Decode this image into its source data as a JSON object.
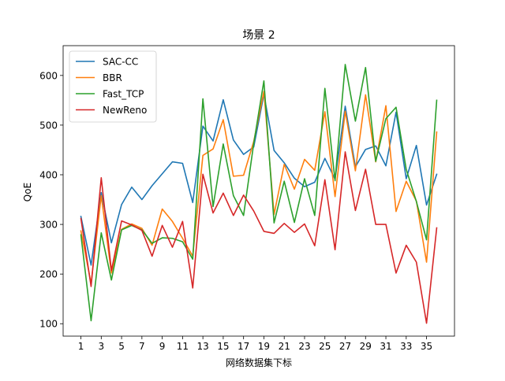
{
  "chart_data": {
    "type": "line",
    "title": "场景 2",
    "xlabel": "网络数据集下标",
    "ylabel": "QoE",
    "xlim": [
      -0.75,
      37.75
    ],
    "ylim": [
      75,
      660
    ],
    "xticks": [
      1,
      3,
      5,
      7,
      9,
      11,
      13,
      15,
      17,
      19,
      21,
      23,
      25,
      27,
      29,
      31,
      33,
      35
    ],
    "yticks": [
      100,
      200,
      300,
      400,
      500,
      600
    ],
    "grid": false,
    "legend_position": "top-left",
    "x": [
      1,
      2,
      3,
      4,
      5,
      6,
      7,
      8,
      9,
      10,
      11,
      12,
      13,
      14,
      15,
      16,
      17,
      18,
      19,
      20,
      21,
      22,
      23,
      24,
      25,
      26,
      27,
      28,
      29,
      30,
      31,
      32,
      33,
      34,
      35,
      36
    ],
    "series": [
      {
        "name": "SAC-CC",
        "color": "#1f77b4",
        "values": [
          316,
          218,
          364,
          263,
          340,
          375,
          350,
          378,
          402,
          426,
          423,
          344,
          498,
          468,
          551,
          470,
          441,
          456,
          562,
          449,
          424,
          393,
          376,
          385,
          433,
          391,
          538,
          416,
          451,
          458,
          418,
          526,
          392,
          459,
          339,
          401
        ]
      },
      {
        "name": "BBR",
        "color": "#ff7f0e",
        "values": [
          287,
          181,
          358,
          202,
          290,
          301,
          292,
          258,
          331,
          306,
          272,
          236,
          439,
          452,
          511,
          397,
          399,
          467,
          568,
          320,
          421,
          371,
          431,
          409,
          527,
          356,
          528,
          408,
          561,
          426,
          539,
          326,
          387,
          347,
          224,
          486
        ]
      },
      {
        "name": "Fast_TCP",
        "color": "#2ca02c",
        "values": [
          279,
          106,
          283,
          188,
          289,
          298,
          289,
          262,
          273,
          272,
          265,
          230,
          553,
          336,
          462,
          358,
          318,
          463,
          589,
          303,
          387,
          304,
          392,
          318,
          574,
          388,
          622,
          508,
          616,
          427,
          513,
          536,
          411,
          346,
          269,
          550
        ]
      },
      {
        "name": "NewReno",
        "color": "#d62728",
        "values": [
          312,
          175,
          394,
          207,
          307,
          299,
          288,
          236,
          298,
          254,
          306,
          172,
          401,
          323,
          363,
          318,
          359,
          327,
          286,
          282,
          302,
          284,
          301,
          257,
          390,
          249,
          446,
          328,
          411,
          300,
          300,
          202,
          258,
          224,
          101,
          293
        ]
      }
    ]
  }
}
